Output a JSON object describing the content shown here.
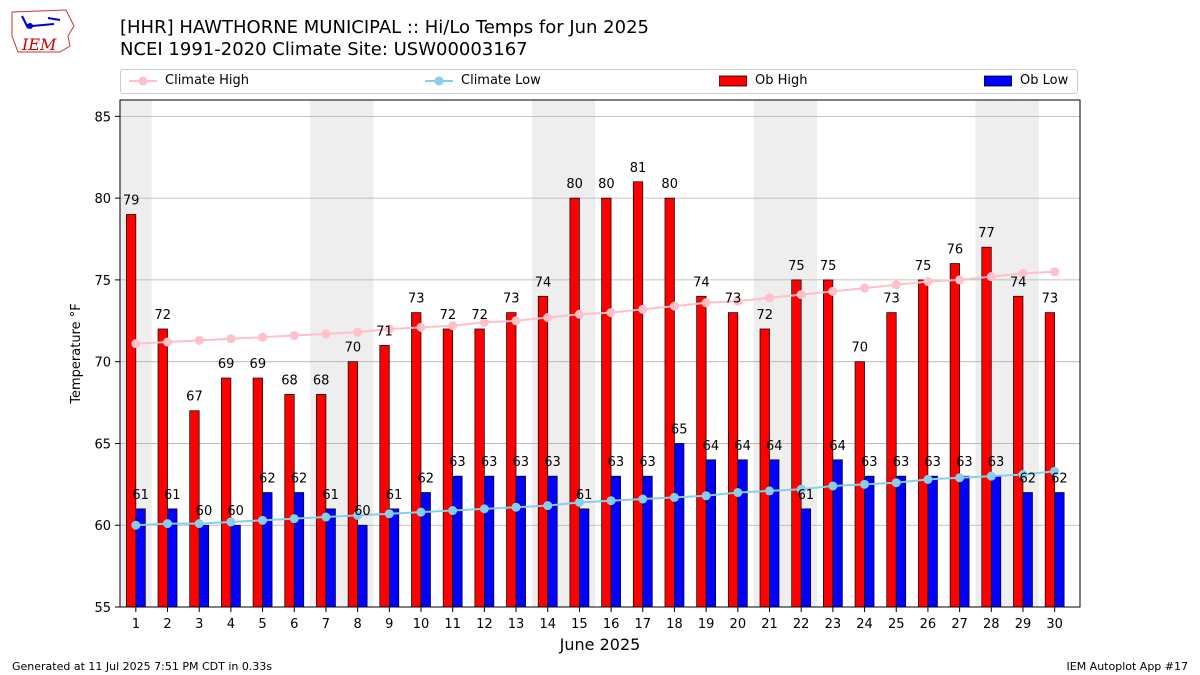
{
  "header": {
    "title_line1": "[HHR] HAWTHORNE MUNICIPAL :: Hi/Lo Temps for Jun 2025",
    "title_line2": "NCEI 1991-2020 Climate Site: USW00003167",
    "logo_text": "IEM"
  },
  "footer": {
    "generated": "Generated at 11 Jul 2025 7:51 PM CDT in 0.33s",
    "app": "IEM Autoplot App #17"
  },
  "colors": {
    "ob_high": "#ff0000",
    "ob_low": "#0000ff",
    "climate_high": "#ffc0cb",
    "climate_low": "#87ceeb",
    "weekend_shade": "#eeeeee",
    "grid": "#b0b0b0"
  },
  "chart_data": {
    "type": "bar",
    "xlabel": "June 2025",
    "ylabel": "Temperature °F",
    "ylim": [
      55,
      86
    ],
    "yticks": [
      55,
      60,
      65,
      70,
      75,
      80,
      85
    ],
    "grid": true,
    "legend_position": "top",
    "categories": [
      1,
      2,
      3,
      4,
      5,
      6,
      7,
      8,
      9,
      10,
      11,
      12,
      13,
      14,
      15,
      16,
      17,
      18,
      19,
      20,
      21,
      22,
      23,
      24,
      25,
      26,
      27,
      28,
      29,
      30
    ],
    "shaded_days": [
      1,
      7,
      8,
      14,
      15,
      21,
      22,
      28,
      29
    ],
    "series": [
      {
        "name": "Climate High",
        "kind": "line",
        "values": [
          71.1,
          71.2,
          71.3,
          71.4,
          71.5,
          71.6,
          71.7,
          71.8,
          72.0,
          72.1,
          72.2,
          72.4,
          72.5,
          72.7,
          72.9,
          73.0,
          73.2,
          73.4,
          73.6,
          73.7,
          73.9,
          74.1,
          74.3,
          74.5,
          74.7,
          74.9,
          75.0,
          75.2,
          75.4,
          75.5
        ]
      },
      {
        "name": "Climate Low",
        "kind": "line",
        "values": [
          60.0,
          60.1,
          60.1,
          60.2,
          60.3,
          60.4,
          60.5,
          60.6,
          60.7,
          60.8,
          60.9,
          61.0,
          61.1,
          61.2,
          61.4,
          61.5,
          61.6,
          61.7,
          61.8,
          62.0,
          62.1,
          62.2,
          62.4,
          62.5,
          62.6,
          62.8,
          62.9,
          63.0,
          63.1,
          63.3
        ]
      },
      {
        "name": "Ob High",
        "kind": "bar",
        "values": [
          79,
          72,
          67,
          69,
          69,
          68,
          68,
          70,
          71,
          73,
          72,
          72,
          73,
          74,
          80,
          80,
          81,
          80,
          74,
          73,
          72,
          75,
          75,
          70,
          73,
          75,
          76,
          77,
          74,
          73
        ]
      },
      {
        "name": "Ob Low",
        "kind": "bar",
        "values": [
          61,
          61,
          60,
          60,
          62,
          62,
          61,
          60,
          61,
          62,
          63,
          63,
          63,
          63,
          61,
          63,
          63,
          65,
          64,
          64,
          64,
          61,
          64,
          63,
          63,
          63,
          63,
          63,
          62,
          62
        ]
      }
    ]
  }
}
